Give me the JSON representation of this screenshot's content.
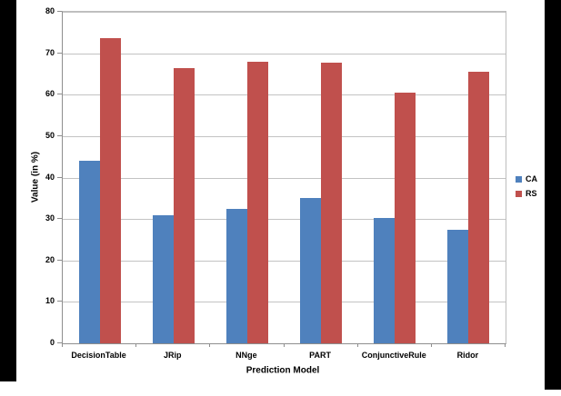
{
  "letterbox_color": "#000000",
  "chart_data": {
    "type": "bar",
    "title": "",
    "xlabel": "Prediction Model",
    "ylabel": "Value (in %)",
    "ylim": [
      0,
      80
    ],
    "ytick_step": 10,
    "grid": true,
    "legend_position": "right",
    "categories": [
      "DecisionTable",
      "JRip",
      "NNge",
      "PART",
      "ConjunctiveRule",
      "Ridor"
    ],
    "series": [
      {
        "name": "CA",
        "color": "#4F81BD",
        "values": [
          44,
          31,
          32.5,
          35,
          30.2,
          27.5
        ]
      },
      {
        "name": "RS",
        "color": "#C0504D",
        "values": [
          73.7,
          66.5,
          68,
          67.7,
          60.5,
          65.5
        ]
      }
    ]
  }
}
